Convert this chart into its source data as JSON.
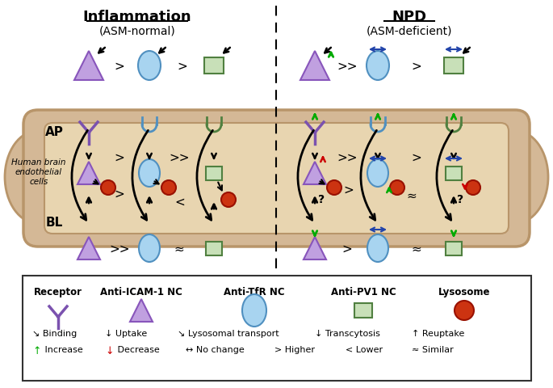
{
  "title_left": "Inflammation",
  "subtitle_left": "(ASM-normal)",
  "title_right": "NPD",
  "subtitle_right": "(ASM-deficient)",
  "label_ap": "AP",
  "label_bl": "BL",
  "label_cells": "Human brain\nendothelial\ncells",
  "bg_color": "#ffffff",
  "vessel_color": "#d4b896",
  "vessel_inner_color": "#e8d5b0",
  "vessel_dark": "#b8956a",
  "purple_triangle_color": "#c0a0e0",
  "purple_triangle_edge": "#8855bb",
  "receptor_color": "#7b52af",
  "blue_oval_fill": "#a8d4f0",
  "blue_oval_edge": "#5090c0",
  "green_rect_fill": "#c8e0b8",
  "green_rect_edge": "#508040",
  "red_circle_fill": "#cc3311",
  "red_circle_edge": "#991100",
  "legend_box_color": "#333333",
  "arrow_color": "#1a1a1a",
  "green_arrow_color": "#00aa00",
  "red_arrow_color": "#cc0000",
  "blue_arrow_color": "#2244aa"
}
